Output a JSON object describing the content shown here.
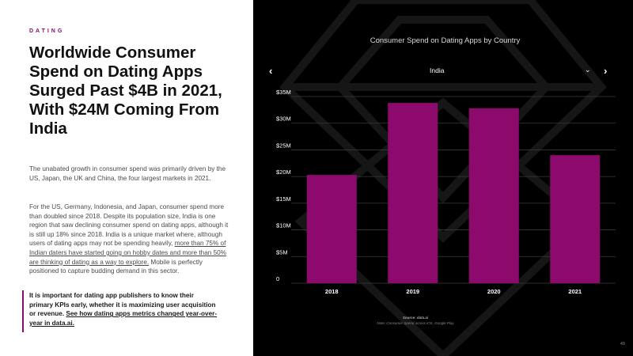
{
  "left": {
    "eyebrow": "DATING",
    "title": "Worldwide Consumer Spend on Dating Apps Surged Past $4B in 2021, With $24M Coming From India",
    "para1": "The unabated growth in consumer spend was primarily driven by the US, Japan, the UK and China, the four largest markets in 2021.",
    "para2_a": "For the US, Germany, Indonesia, and Japan, consumer spend more than doubled since 2018. Despite its population size, India is one region that saw declining consumer spend on dating apps, although it is still up 18% since 2018. India is a unique market where, although users of dating apps may not be spending heavily, ",
    "para2_link": "more than 75% of Indian daters have started going on hobby dates and more than 50% are thinking of dating as a way to explore.",
    "para2_b": " Mobile is perfectly positioned to capture budding demand in this sector.",
    "callout_a": "It is important for dating app publishers to know their primary KPIs early, whether it is maximizing user acquisition or revenue. ",
    "callout_link": "See how dating apps metrics changed year-over-year in data.ai."
  },
  "chart_panel": {
    "country": "India",
    "arrow_left": "‹",
    "arrow_right": "›",
    "dropdown": "⌄",
    "source": "Source: data.ai",
    "note": "Note: Consumer Spend across iOS, Google Play",
    "page_number": "49"
  },
  "chart_data": {
    "type": "bar",
    "title": "Consumer Spend on Dating Apps by Country",
    "categories": [
      "2018",
      "2019",
      "2020",
      "2021"
    ],
    "values": [
      20.3,
      33.8,
      32.8,
      24
    ],
    "unit": "USD millions",
    "yticks": [
      0,
      5,
      10,
      15,
      20,
      25,
      30,
      35
    ],
    "ytick_labels": [
      "0",
      "$5M",
      "$10M",
      "$15M",
      "$20M",
      "$25M",
      "$30M",
      "$35M"
    ],
    "ylim": [
      0,
      35
    ],
    "xlabel": "",
    "ylabel": "",
    "grid": true,
    "colors": {
      "bar": "#8b0a6b",
      "grid": "#3a3a3a",
      "text": "#ffffff"
    }
  }
}
